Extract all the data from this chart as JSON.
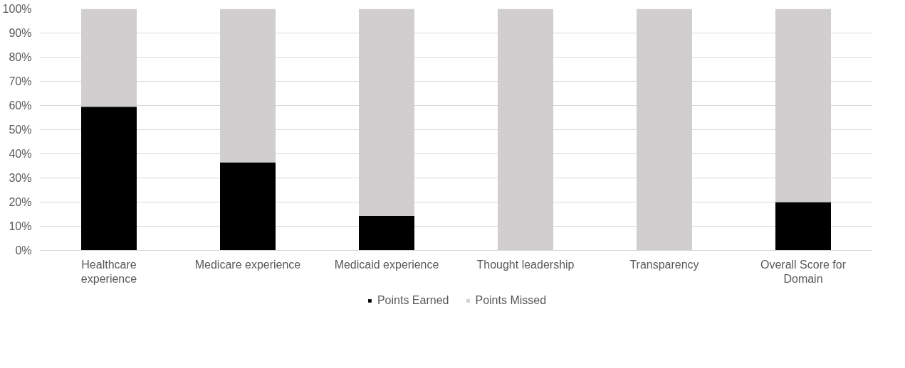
{
  "chart_data": {
    "type": "bar",
    "stacked": true,
    "categories": [
      "Healthcare experience",
      "Medicare experience",
      "Medicaid experience",
      "Thought leadership",
      "Transparency",
      "Overall Score for Domain"
    ],
    "series": [
      {
        "name": "Points Earned",
        "color": "#000000",
        "values": [
          59.5,
          36.5,
          14.3,
          0,
          0,
          20
        ]
      },
      {
        "name": "Points Missed",
        "color": "#d0cece",
        "values": [
          40.5,
          63.5,
          85.7,
          100,
          100,
          80
        ]
      }
    ],
    "ylim": [
      0,
      100
    ],
    "yticks": [
      {
        "value": 0,
        "label": "0%"
      },
      {
        "value": 10,
        "label": "10%"
      },
      {
        "value": 20,
        "label": "20%"
      },
      {
        "value": 30,
        "label": "30%"
      },
      {
        "value": 40,
        "label": "40%"
      },
      {
        "value": 50,
        "label": "50%"
      },
      {
        "value": 60,
        "label": "60%"
      },
      {
        "value": 70,
        "label": "70%"
      },
      {
        "value": 80,
        "label": "80%"
      },
      {
        "value": 90,
        "label": "90%"
      },
      {
        "value": 100,
        "label": "100%"
      }
    ],
    "grid": "y",
    "legend": "bottom"
  }
}
